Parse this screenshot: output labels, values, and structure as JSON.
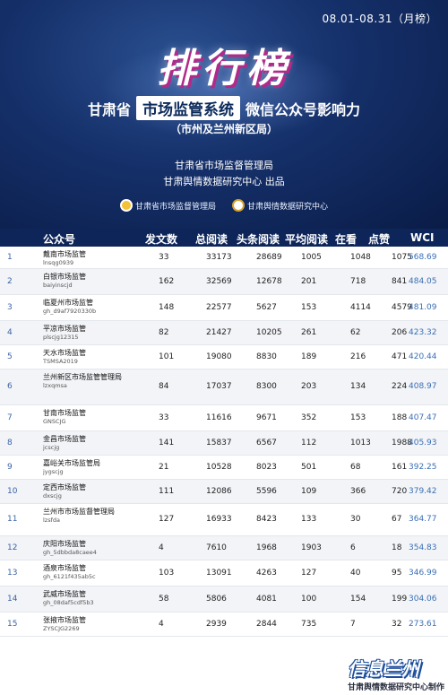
{
  "header": {
    "date_range": "08.01-08.31（月榜）",
    "big_title": "排行榜",
    "subtitle_prefix": "甘肃省",
    "subtitle_highlight": "市场监管系统",
    "subtitle_suffix": "微信公众号影响力",
    "subtitle_paren": "（市州及兰州新区局）",
    "org_line_1": "甘肃省市场监督管理局",
    "org_line_2": "甘肃舆情数据研究中心 出品",
    "logo_1": "甘肃省市场监督管理局",
    "logo_2": "甘肃舆情数据研究中心"
  },
  "table": {
    "columns": [
      "公众号",
      "发文数",
      "总阅读",
      "头条阅读",
      "平均阅读",
      "在看",
      "点赞",
      "WCI"
    ],
    "rows": [
      {
        "rank": "1",
        "name": "戴南市场监管",
        "account": "lnsqg0939",
        "fw": "33",
        "zr": "33173",
        "tt": "28689",
        "pj": "1005",
        "zk": "1048",
        "dz": "1075",
        "wci": "568.69"
      },
      {
        "rank": "2",
        "name": "白银市场监管",
        "account": "baiyinscjd",
        "fw": "162",
        "zr": "32569",
        "tt": "12678",
        "pj": "201",
        "zk": "718",
        "dz": "841",
        "wci": "484.05"
      },
      {
        "rank": "3",
        "name": "临夏州市场监管",
        "account": "gh_d9af7920330b",
        "fw": "148",
        "zr": "22577",
        "tt": "5627",
        "pj": "153",
        "zk": "4114",
        "dz": "4579",
        "wci": "481.09"
      },
      {
        "rank": "4",
        "name": "平凉市场监管",
        "account": "plscjg12315",
        "fw": "82",
        "zr": "21427",
        "tt": "10205",
        "pj": "261",
        "zk": "62",
        "dz": "206",
        "wci": "423.32"
      },
      {
        "rank": "5",
        "name": "天水市场监管",
        "account": "TSMSA2019",
        "fw": "101",
        "zr": "19080",
        "tt": "8830",
        "pj": "189",
        "zk": "216",
        "dz": "471",
        "wci": "420.44"
      },
      {
        "rank": "6",
        "name": "兰州新区市场监管管理局",
        "account": "lzxqmsa",
        "fw": "84",
        "zr": "17037",
        "tt": "8300",
        "pj": "203",
        "zk": "134",
        "dz": "224",
        "wci": "408.97"
      },
      {
        "rank": "7",
        "name": "甘南市场监管",
        "account": "GNSCJG",
        "fw": "33",
        "zr": "11616",
        "tt": "9671",
        "pj": "352",
        "zk": "153",
        "dz": "188",
        "wci": "407.47"
      },
      {
        "rank": "8",
        "name": "金昌市场监管",
        "account": "jcscjg",
        "fw": "141",
        "zr": "15837",
        "tt": "6567",
        "pj": "112",
        "zk": "1013",
        "dz": "1988",
        "wci": "405.93"
      },
      {
        "rank": "9",
        "name": "嘉峪关市场监管局",
        "account": "jygscjg",
        "fw": "21",
        "zr": "10528",
        "tt": "8023",
        "pj": "501",
        "zk": "68",
        "dz": "161",
        "wci": "392.25"
      },
      {
        "rank": "10",
        "name": "定西市场监管",
        "account": "dxscjg",
        "fw": "111",
        "zr": "12086",
        "tt": "5596",
        "pj": "109",
        "zk": "366",
        "dz": "720",
        "wci": "379.42"
      },
      {
        "rank": "11",
        "name": "兰州市市场监督管理局",
        "account": "lzsfda",
        "fw": "127",
        "zr": "16933",
        "tt": "8423",
        "pj": "133",
        "zk": "30",
        "dz": "67",
        "wci": "364.77"
      },
      {
        "rank": "12",
        "name": "庆阳市场监管",
        "account": "gh_5dbbda8caee4",
        "fw": "4",
        "zr": "7610",
        "tt": "1968",
        "pj": "1903",
        "zk": "6",
        "dz": "18",
        "wci": "354.83"
      },
      {
        "rank": "13",
        "name": "酒泉市场监管",
        "account": "gh_6121f435ab5c",
        "fw": "103",
        "zr": "13091",
        "tt": "4263",
        "pj": "127",
        "zk": "40",
        "dz": "95",
        "wci": "346.99"
      },
      {
        "rank": "14",
        "name": "武威市场监管",
        "account": "gh_08daf5cdf5b3",
        "fw": "58",
        "zr": "5806",
        "tt": "4081",
        "pj": "100",
        "zk": "154",
        "dz": "199",
        "wci": "304.06"
      },
      {
        "rank": "15",
        "name": "张掖市场监管",
        "account": "ZYSCJG2269",
        "fw": "4",
        "zr": "2939",
        "tt": "2844",
        "pj": "735",
        "zk": "7",
        "dz": "32",
        "wci": "273.61"
      }
    ]
  },
  "footer": {
    "badge_main": "信息兰州",
    "badge_sub": "甘肃舆情数据研究中心制作"
  }
}
